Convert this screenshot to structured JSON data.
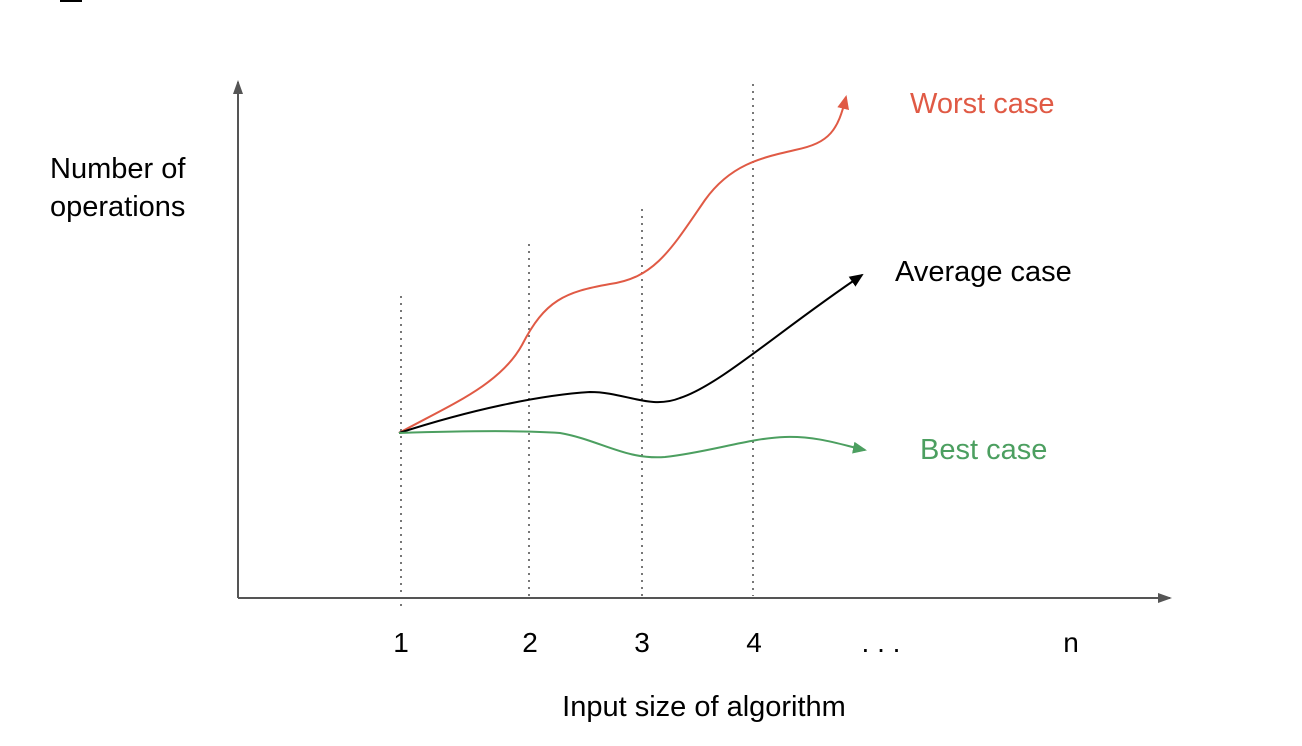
{
  "chart_data": {
    "type": "line",
    "title": "",
    "xlabel": "Input size of algorithm",
    "ylabel_lines": [
      "Number of",
      "operations"
    ],
    "x_tick_labels": [
      "1",
      "2",
      "3",
      "4",
      ". . .",
      "n"
    ],
    "guide_lines_at_ticks": [
      "1",
      "2",
      "3",
      "4"
    ],
    "grid": false,
    "y_tick_labels": [],
    "series": [
      {
        "name": "Worst case",
        "color": "#e05a45",
        "trend": "increasing steeply"
      },
      {
        "name": "Average case",
        "color": "#000000",
        "trend": "increasing moderately"
      },
      {
        "name": "Best case",
        "color": "#4c9f60",
        "trend": "roughly flat"
      }
    ]
  }
}
